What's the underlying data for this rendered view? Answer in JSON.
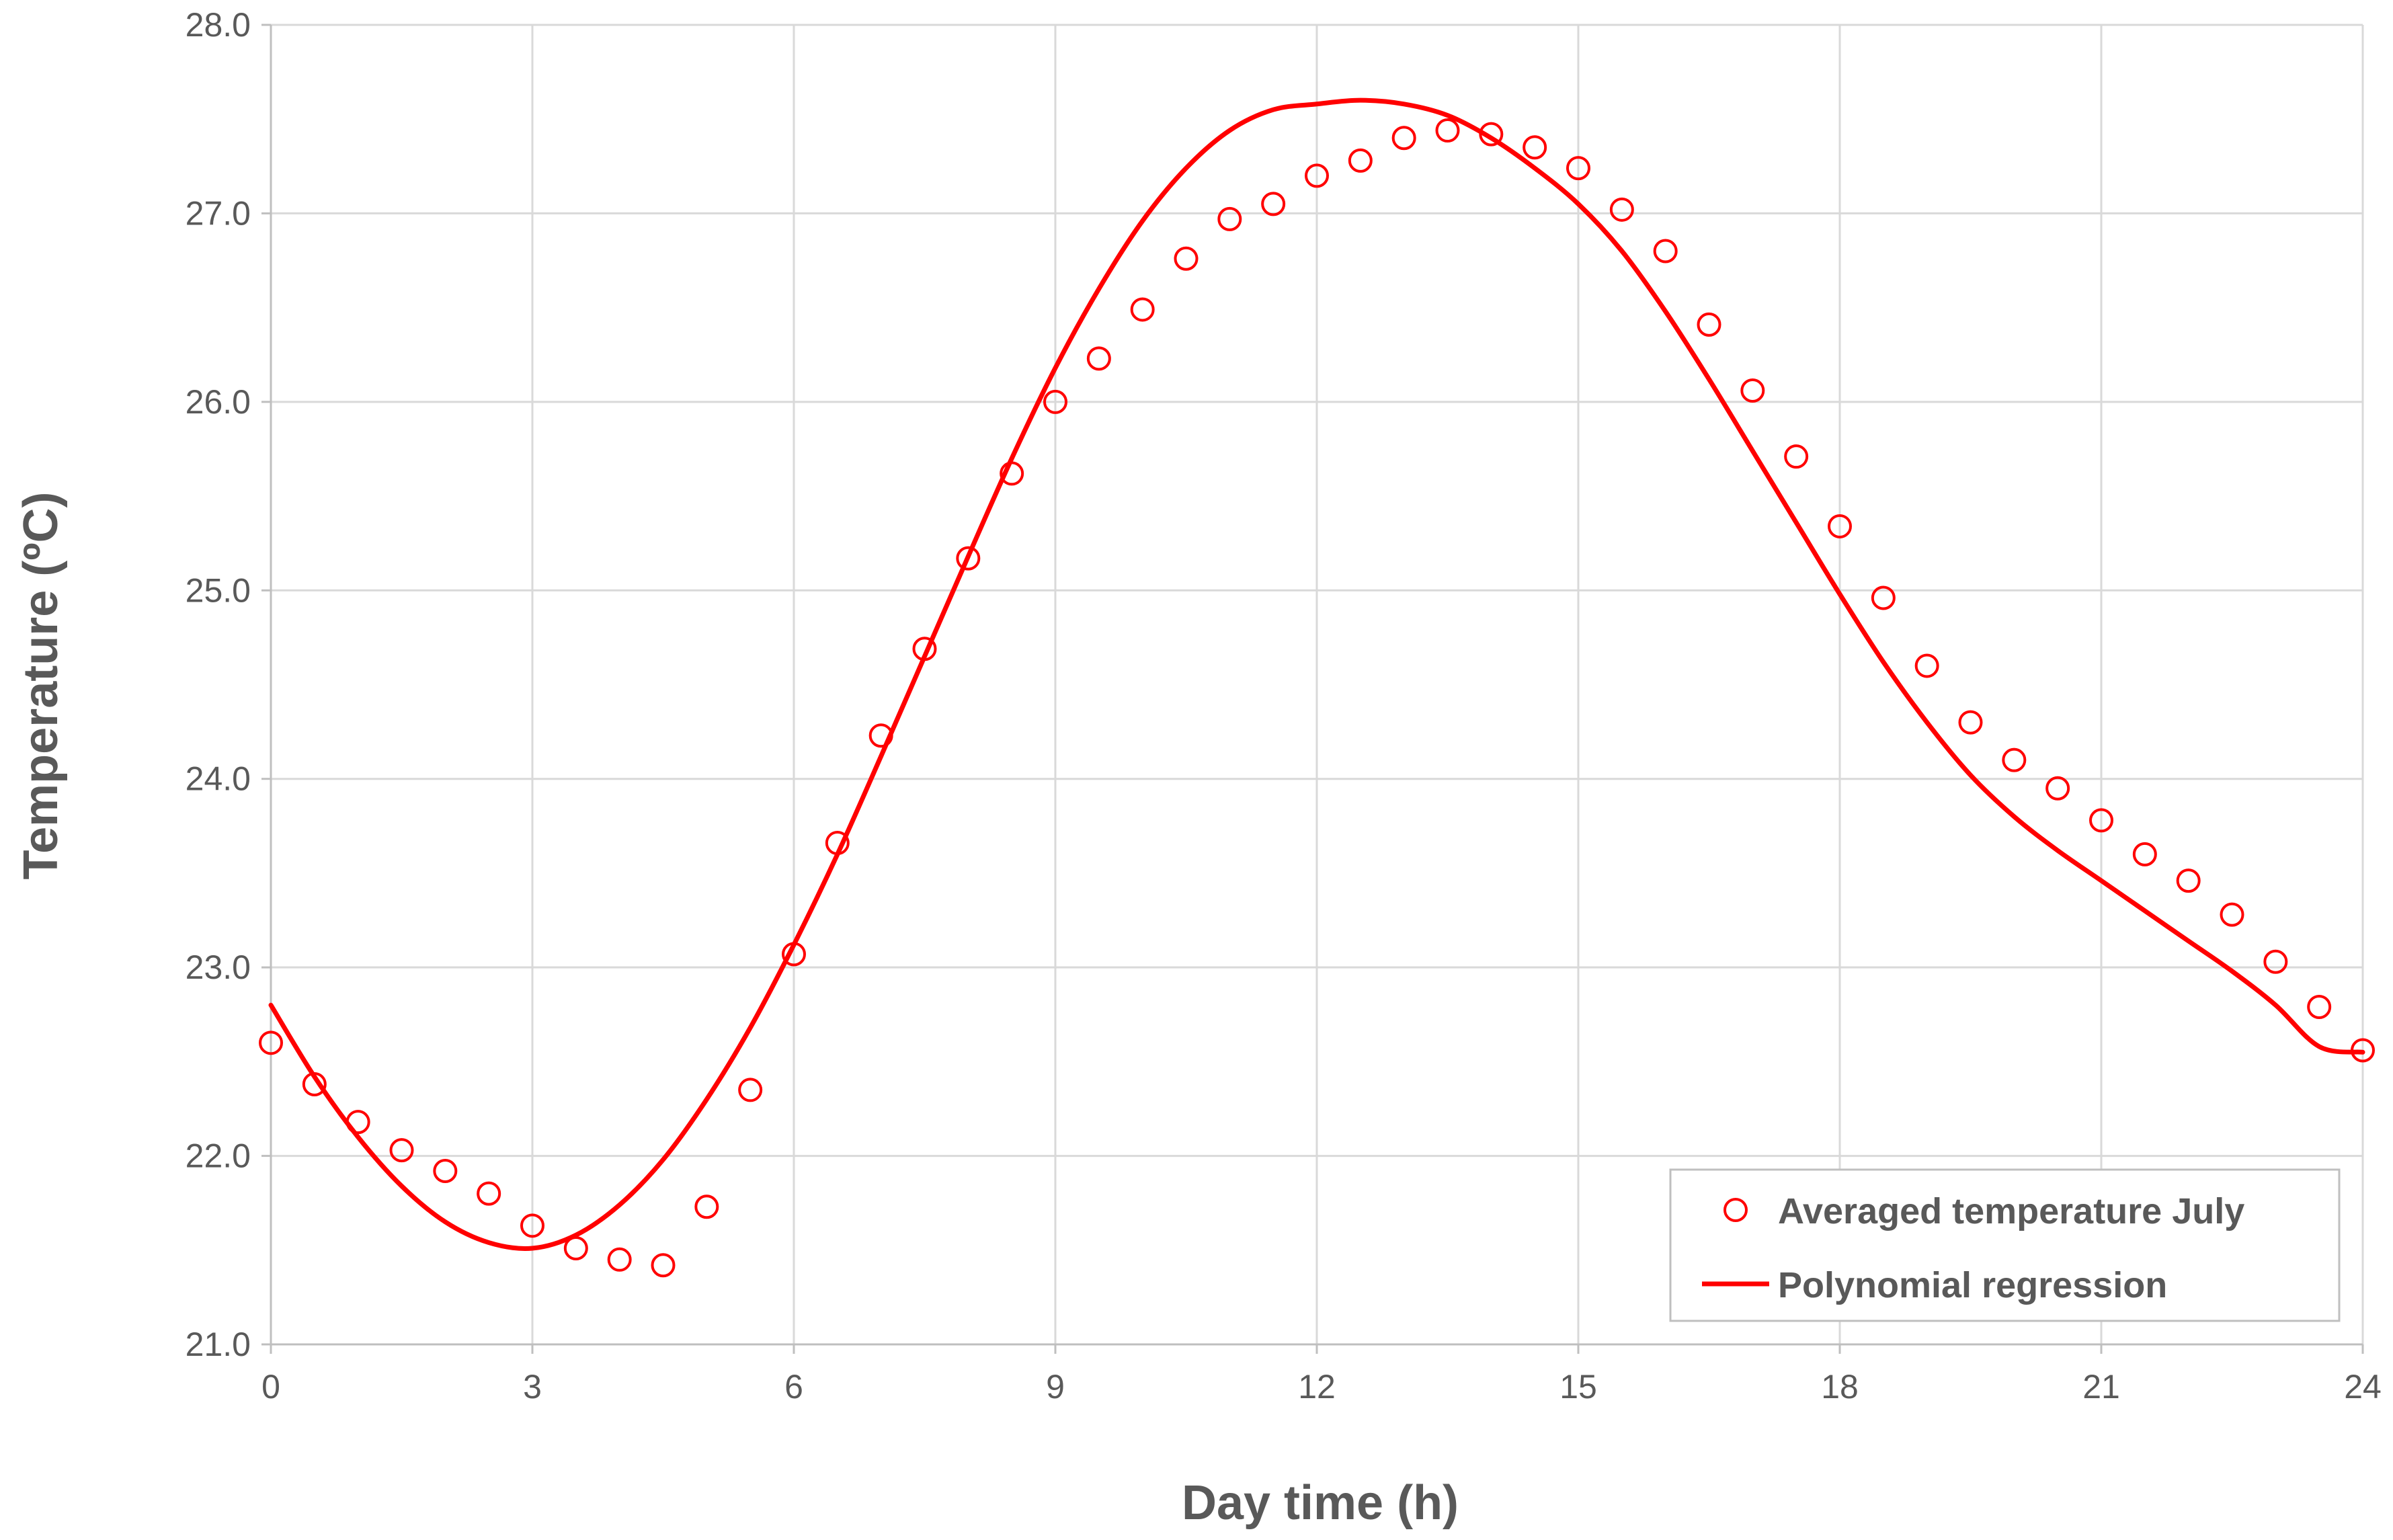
{
  "chart_data": {
    "type": "scatter",
    "title": "",
    "xlabel": "Day time (h)",
    "ylabel": "Temperature (ºC)",
    "xlim": [
      0,
      24
    ],
    "ylim": [
      21.0,
      28.0
    ],
    "x_ticks": [
      0,
      3,
      6,
      9,
      12,
      15,
      18,
      21,
      24
    ],
    "x_tick_labels": [
      "0",
      "3",
      "6",
      "9",
      "12",
      "15",
      "18",
      "21",
      "24"
    ],
    "y_ticks": [
      21.0,
      22.0,
      23.0,
      24.0,
      25.0,
      26.0,
      27.0,
      28.0
    ],
    "y_tick_labels": [
      "21.0",
      "22.0",
      "23.0",
      "24.0",
      "25.0",
      "26.0",
      "27.0",
      "28.0"
    ],
    "grid": true,
    "legend_position": "bottom-right",
    "colors": {
      "series": "#ff0000",
      "grid": "#d9d9d9",
      "text": "#595959"
    },
    "series": [
      {
        "name": "Averaged temperature July",
        "kind": "markers",
        "marker": "open-circle",
        "x": [
          0,
          0.5,
          1,
          1.5,
          2,
          2.5,
          3,
          3.5,
          4,
          4.5,
          5,
          5.5,
          6,
          6.5,
          7,
          7.5,
          8,
          8.5,
          9,
          9.5,
          10,
          10.5,
          11,
          11.5,
          12,
          12.5,
          13,
          13.5,
          14,
          14.5,
          15,
          15.5,
          16,
          16.5,
          17,
          17.5,
          18,
          18.5,
          19,
          19.5,
          20,
          20.5,
          21,
          21.5,
          22,
          22.5,
          23,
          23.5,
          24
        ],
        "y": [
          22.6,
          22.38,
          22.18,
          22.03,
          21.92,
          21.8,
          21.63,
          21.51,
          21.45,
          21.42,
          21.73,
          22.35,
          23.07,
          23.66,
          24.23,
          24.69,
          25.17,
          25.62,
          26.0,
          26.23,
          26.49,
          26.76,
          26.97,
          27.05,
          27.2,
          27.28,
          27.4,
          27.44,
          27.42,
          27.35,
          27.24,
          27.02,
          26.8,
          26.41,
          26.06,
          25.71,
          25.34,
          24.96,
          24.6,
          24.3,
          24.1,
          23.95,
          23.78,
          23.6,
          23.46,
          23.28,
          23.03,
          22.79,
          22.56
        ]
      },
      {
        "name": "Polynomial regression",
        "kind": "line",
        "x": [
          0,
          0.5,
          1,
          1.5,
          2,
          2.5,
          3,
          3.5,
          4,
          4.5,
          5,
          5.5,
          6,
          6.5,
          7,
          7.5,
          8,
          8.5,
          9,
          9.5,
          10,
          10.5,
          11,
          11.5,
          12,
          12.5,
          13,
          13.5,
          14,
          14.5,
          15,
          15.5,
          16,
          16.5,
          17,
          17.5,
          18,
          18.5,
          19,
          19.5,
          20,
          20.5,
          21,
          21.5,
          22,
          22.5,
          23,
          23.5,
          24
        ],
        "y": [
          22.8,
          22.42,
          22.1,
          21.84,
          21.65,
          21.54,
          21.51,
          21.58,
          21.74,
          21.98,
          22.3,
          22.68,
          23.12,
          23.6,
          24.12,
          24.65,
          25.18,
          25.7,
          26.18,
          26.6,
          26.96,
          27.24,
          27.44,
          27.55,
          27.58,
          27.6,
          27.58,
          27.52,
          27.4,
          27.24,
          27.05,
          26.8,
          26.48,
          26.12,
          25.74,
          25.36,
          24.98,
          24.62,
          24.3,
          24.02,
          23.8,
          23.62,
          23.46,
          23.3,
          23.14,
          22.98,
          22.8,
          22.58,
          22.55
        ]
      }
    ]
  }
}
